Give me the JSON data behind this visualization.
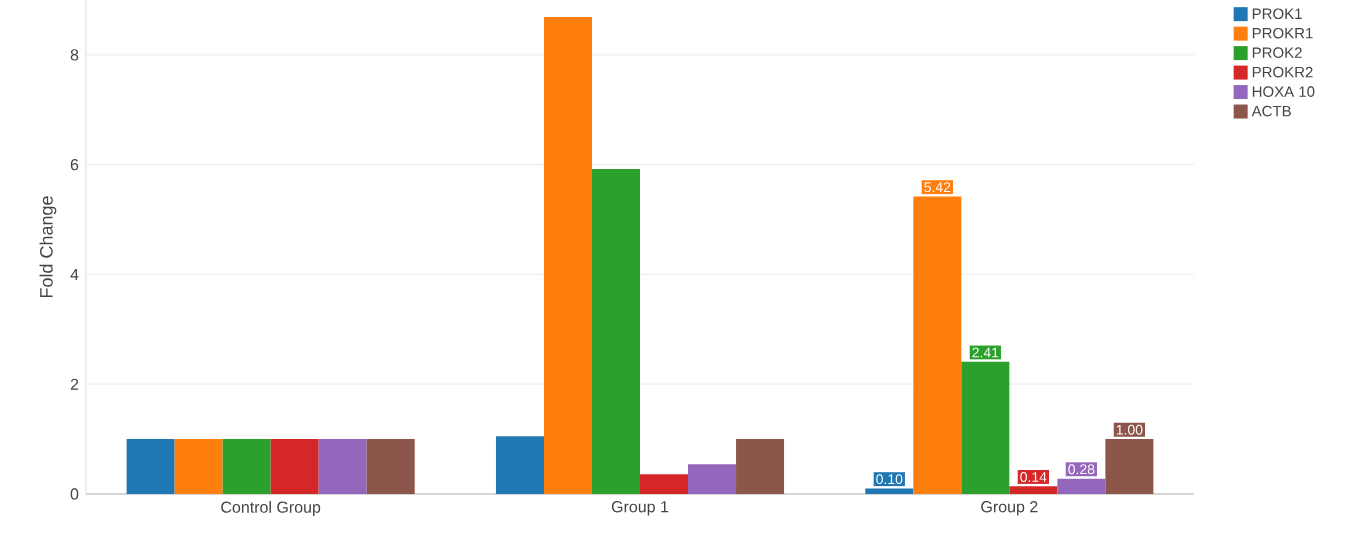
{
  "chart_data": {
    "type": "bar",
    "ylabel": "Fold Change",
    "categories": [
      "Control Group",
      "Group 1",
      "Group 2"
    ],
    "series": [
      {
        "name": "PROK1",
        "color": "#1f77b4",
        "values": [
          1.0,
          1.05,
          0.1
        ],
        "value_labels": [
          null,
          null,
          "0.10"
        ]
      },
      {
        "name": "PROKR1",
        "color": "#ff7f0e",
        "values": [
          1.0,
          8.69,
          5.42
        ],
        "value_labels": [
          null,
          null,
          "5.42"
        ]
      },
      {
        "name": "PROK2",
        "color": "#2ca02c",
        "values": [
          1.0,
          5.92,
          2.41
        ],
        "value_labels": [
          null,
          null,
          "2.41"
        ]
      },
      {
        "name": "PROKR2",
        "color": "#d62728",
        "values": [
          1.0,
          0.36,
          0.14
        ],
        "value_labels": [
          null,
          null,
          "0.14"
        ]
      },
      {
        "name": "HOXA 10",
        "color": "#9467bd",
        "values": [
          1.0,
          0.54,
          0.28
        ],
        "value_labels": [
          null,
          null,
          "0.28"
        ]
      },
      {
        "name": "ACTB",
        "color": "#8c564b",
        "values": [
          1.0,
          1.0,
          1.0
        ],
        "value_labels": [
          null,
          null,
          "1.00"
        ]
      }
    ],
    "ylim": [
      0,
      9
    ],
    "yticks": [
      0,
      2,
      4,
      6,
      8
    ],
    "grid": "y",
    "legend": "top right"
  }
}
